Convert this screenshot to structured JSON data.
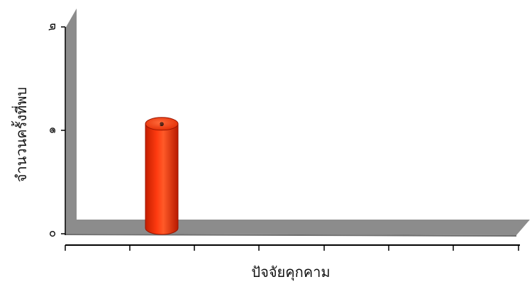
{
  "chart_data": {
    "type": "bar",
    "style": "3d-cylinder",
    "categories": [
      ""
    ],
    "series": [
      {
        "values": [
          1.2
        ],
        "color": "#ff2a00",
        "data_labels": [
          "๑"
        ]
      }
    ],
    "xlabel": "ปัจจัยคุกคาม",
    "ylabel": "จำนวนครั้งที่พบ",
    "ylim": [
      0,
      2
    ],
    "yticks": [
      "๐",
      "๑",
      "๒"
    ],
    "grid": false,
    "legend": "none",
    "floor_color": "#8a8a8a",
    "wall_color": "#8a8a8a"
  }
}
